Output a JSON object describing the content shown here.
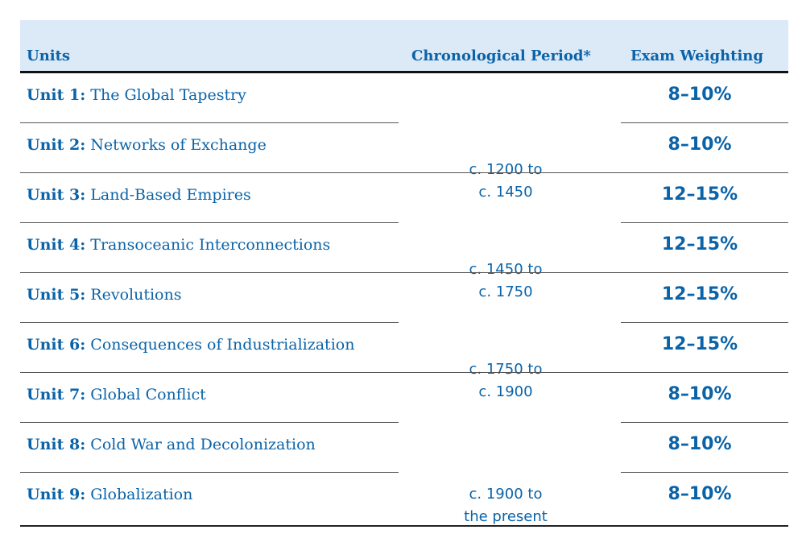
{
  "headers": {
    "units": "Units",
    "period": "Chronological Period*",
    "weighting": "Exam Weighting"
  },
  "rows": [
    {
      "unit_label": "Unit 1:",
      "title": "The Global Tapestry",
      "weighting": "8–10%"
    },
    {
      "unit_label": "Unit 2:",
      "title": "Networks of Exchange",
      "weighting": "8–10%"
    },
    {
      "unit_label": "Unit 3:",
      "title": "Land-Based Empires",
      "weighting": "12–15%"
    },
    {
      "unit_label": "Unit 4:",
      "title": "Transoceanic Interconnections",
      "weighting": "12–15%"
    },
    {
      "unit_label": "Unit 5:",
      "title": "Revolutions",
      "weighting": "12–15%"
    },
    {
      "unit_label": "Unit 6:",
      "title": "Consequences of Industrialization",
      "weighting": "12–15%"
    },
    {
      "unit_label": "Unit 7:",
      "title": "Global Conflict",
      "weighting": "8–10%"
    },
    {
      "unit_label": "Unit 8:",
      "title": "Cold War and Decolonization",
      "weighting": "8–10%"
    },
    {
      "unit_label": "Unit 9:",
      "title": "Globalization",
      "weighting": "8–10%"
    }
  ],
  "periods": [
    {
      "line1": "c. 1200 to",
      "line2": "c. 1450"
    },
    {
      "line1": "c. 1450 to",
      "line2": "c. 1750"
    },
    {
      "line1": "c. 1750 to",
      "line2": "c. 1900"
    },
    {
      "line1": "c. 1900 to",
      "line2": "the present"
    }
  ],
  "colors": {
    "text": "#0a63a8",
    "header_bg": "#dce9f7"
  }
}
